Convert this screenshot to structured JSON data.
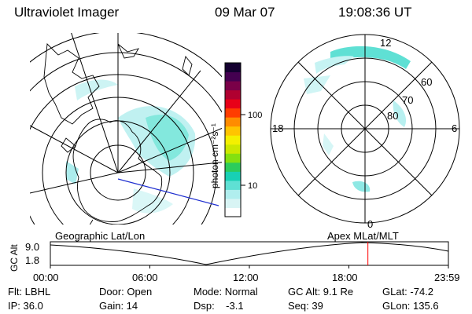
{
  "header": {
    "title": "Ultraviolet Imager",
    "date": "09 Mar 07",
    "time": "19:08:36 UT"
  },
  "colorbar": {
    "unit_text": "photon cm⁻²s⁻¹",
    "ticks": [
      "100",
      "10"
    ],
    "colors": [
      "#ffffff",
      "#d8f4f4",
      "#b0eeee",
      "#5fe0d4",
      "#18d0b4",
      "#2ccc5c",
      "#84e010",
      "#cce800",
      "#f4f000",
      "#ffc400",
      "#ff8c00",
      "#ff3c00",
      "#e80018",
      "#b00030",
      "#7a0048",
      "#440050",
      "#140030"
    ]
  },
  "polar_plot": {
    "mlt_labels": [
      "12",
      "18",
      "6",
      "0"
    ],
    "mlat_labels": [
      "60",
      "70",
      "80"
    ]
  },
  "timeline": {
    "left_label": "Geographic Lat/Lon",
    "right_label": "Apex MLat/MLT",
    "y_axis_label": "GC Alt",
    "y_ticks": [
      "9.0",
      "1.8"
    ],
    "x_ticks": [
      "00:00",
      "06:00",
      "12:00",
      "18:00",
      "23:59"
    ],
    "marker_time": "19:08",
    "marker_color": "#ff0000"
  },
  "status": {
    "flt": "Flt: LBHL",
    "door": "Door: Open",
    "mode": "Mode: Normal",
    "gc_alt": "GC Alt: 9.1 Re",
    "glat": "GLat: -74.2",
    "ip": "IP: 36.0",
    "gain": "Gain: 14",
    "dsp": "Dsp:    -3.1",
    "seq": "Seq: 39",
    "glon": "GLon: 135.6"
  }
}
